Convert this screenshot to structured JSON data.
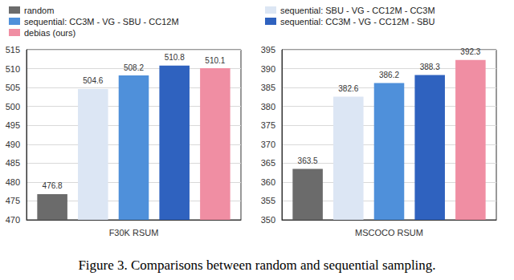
{
  "caption": "Figure 3. Comparisons between random and sequential sampling.",
  "chart_data": [
    {
      "type": "bar",
      "categories": [
        "F30K RSUM"
      ],
      "series": [
        {
          "name": "random",
          "color": "#6b6b6b",
          "values": [
            476.8
          ]
        },
        {
          "name": "sequential: SBU - VG - CC12M - CC3M",
          "color": "#dce6f4",
          "values": [
            504.6
          ]
        },
        {
          "name": "sequential: CC3M - VG - SBU - CC12M",
          "color": "#4f90da",
          "values": [
            508.2
          ]
        },
        {
          "name": "sequential: CC3M - VG - CC12M - SBU",
          "color": "#2f62bf",
          "values": [
            510.8
          ]
        },
        {
          "name": "debias (ours)",
          "color": "#f08ea3",
          "values": [
            510.1
          ]
        }
      ],
      "ylim": [
        470,
        515
      ],
      "yticks": [
        470,
        475,
        480,
        485,
        490,
        495,
        500,
        505,
        510,
        515
      ],
      "grid": true,
      "data_labels": true,
      "legend": "top"
    },
    {
      "type": "bar",
      "categories": [
        "MSCOCO RSUM"
      ],
      "series": [
        {
          "name": "random",
          "color": "#6b6b6b",
          "values": [
            363.5
          ]
        },
        {
          "name": "sequential: SBU - VG - CC12M - CC3M",
          "color": "#dce6f4",
          "values": [
            382.6
          ]
        },
        {
          "name": "sequential: CC3M - VG - SBU - CC12M",
          "color": "#4f90da",
          "values": [
            386.2
          ]
        },
        {
          "name": "sequential: CC3M - VG - CC12M - SBU",
          "color": "#2f62bf",
          "values": [
            388.3
          ]
        },
        {
          "name": "debias (ours)",
          "color": "#f08ea3",
          "values": [
            392.3
          ]
        }
      ],
      "ylim": [
        350,
        395
      ],
      "yticks": [
        350,
        355,
        360,
        365,
        370,
        375,
        380,
        385,
        390,
        395
      ],
      "grid": true,
      "data_labels": true
    }
  ]
}
